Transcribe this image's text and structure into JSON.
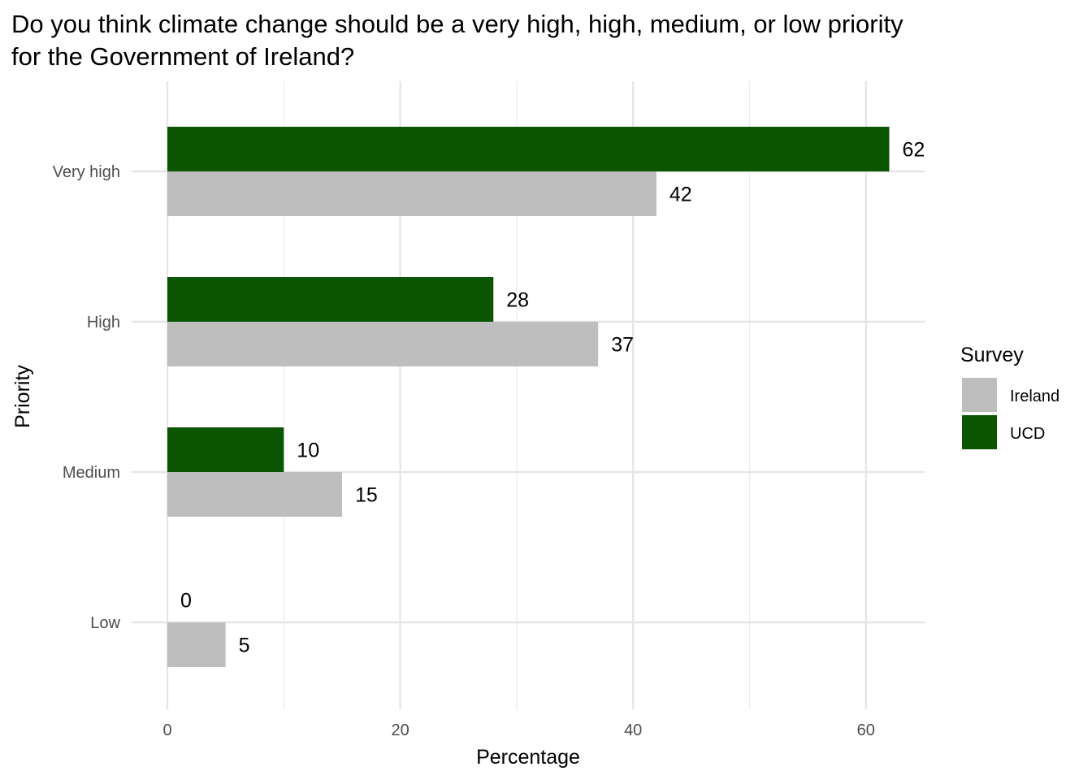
{
  "chart_data": {
    "type": "bar",
    "orientation": "horizontal",
    "title": "Do you think climate change should be a very high, high, medium, or low priority for the Government of Ireland?",
    "title_lines": [
      "Do you think climate change should be a very high, high, medium, or low priority",
      "for the Government of Ireland?"
    ],
    "xlabel": "Percentage",
    "ylabel": "Priority",
    "categories": [
      "Very high",
      "High",
      "Medium",
      "Low"
    ],
    "series": [
      {
        "name": "UCD",
        "color": "#0b5503",
        "values": [
          62,
          28,
          10,
          0
        ]
      },
      {
        "name": "Ireland",
        "color": "#bebebe",
        "values": [
          42,
          37,
          15,
          5
        ]
      }
    ],
    "x_ticks": [
      0,
      20,
      40,
      60
    ],
    "xlim": [
      0,
      65
    ],
    "grid": true,
    "legend": {
      "title": "Survey",
      "placement": "right",
      "entries": [
        {
          "name": "Ireland",
          "color": "#bebebe"
        },
        {
          "name": "UCD",
          "color": "#0b5503"
        }
      ]
    }
  }
}
